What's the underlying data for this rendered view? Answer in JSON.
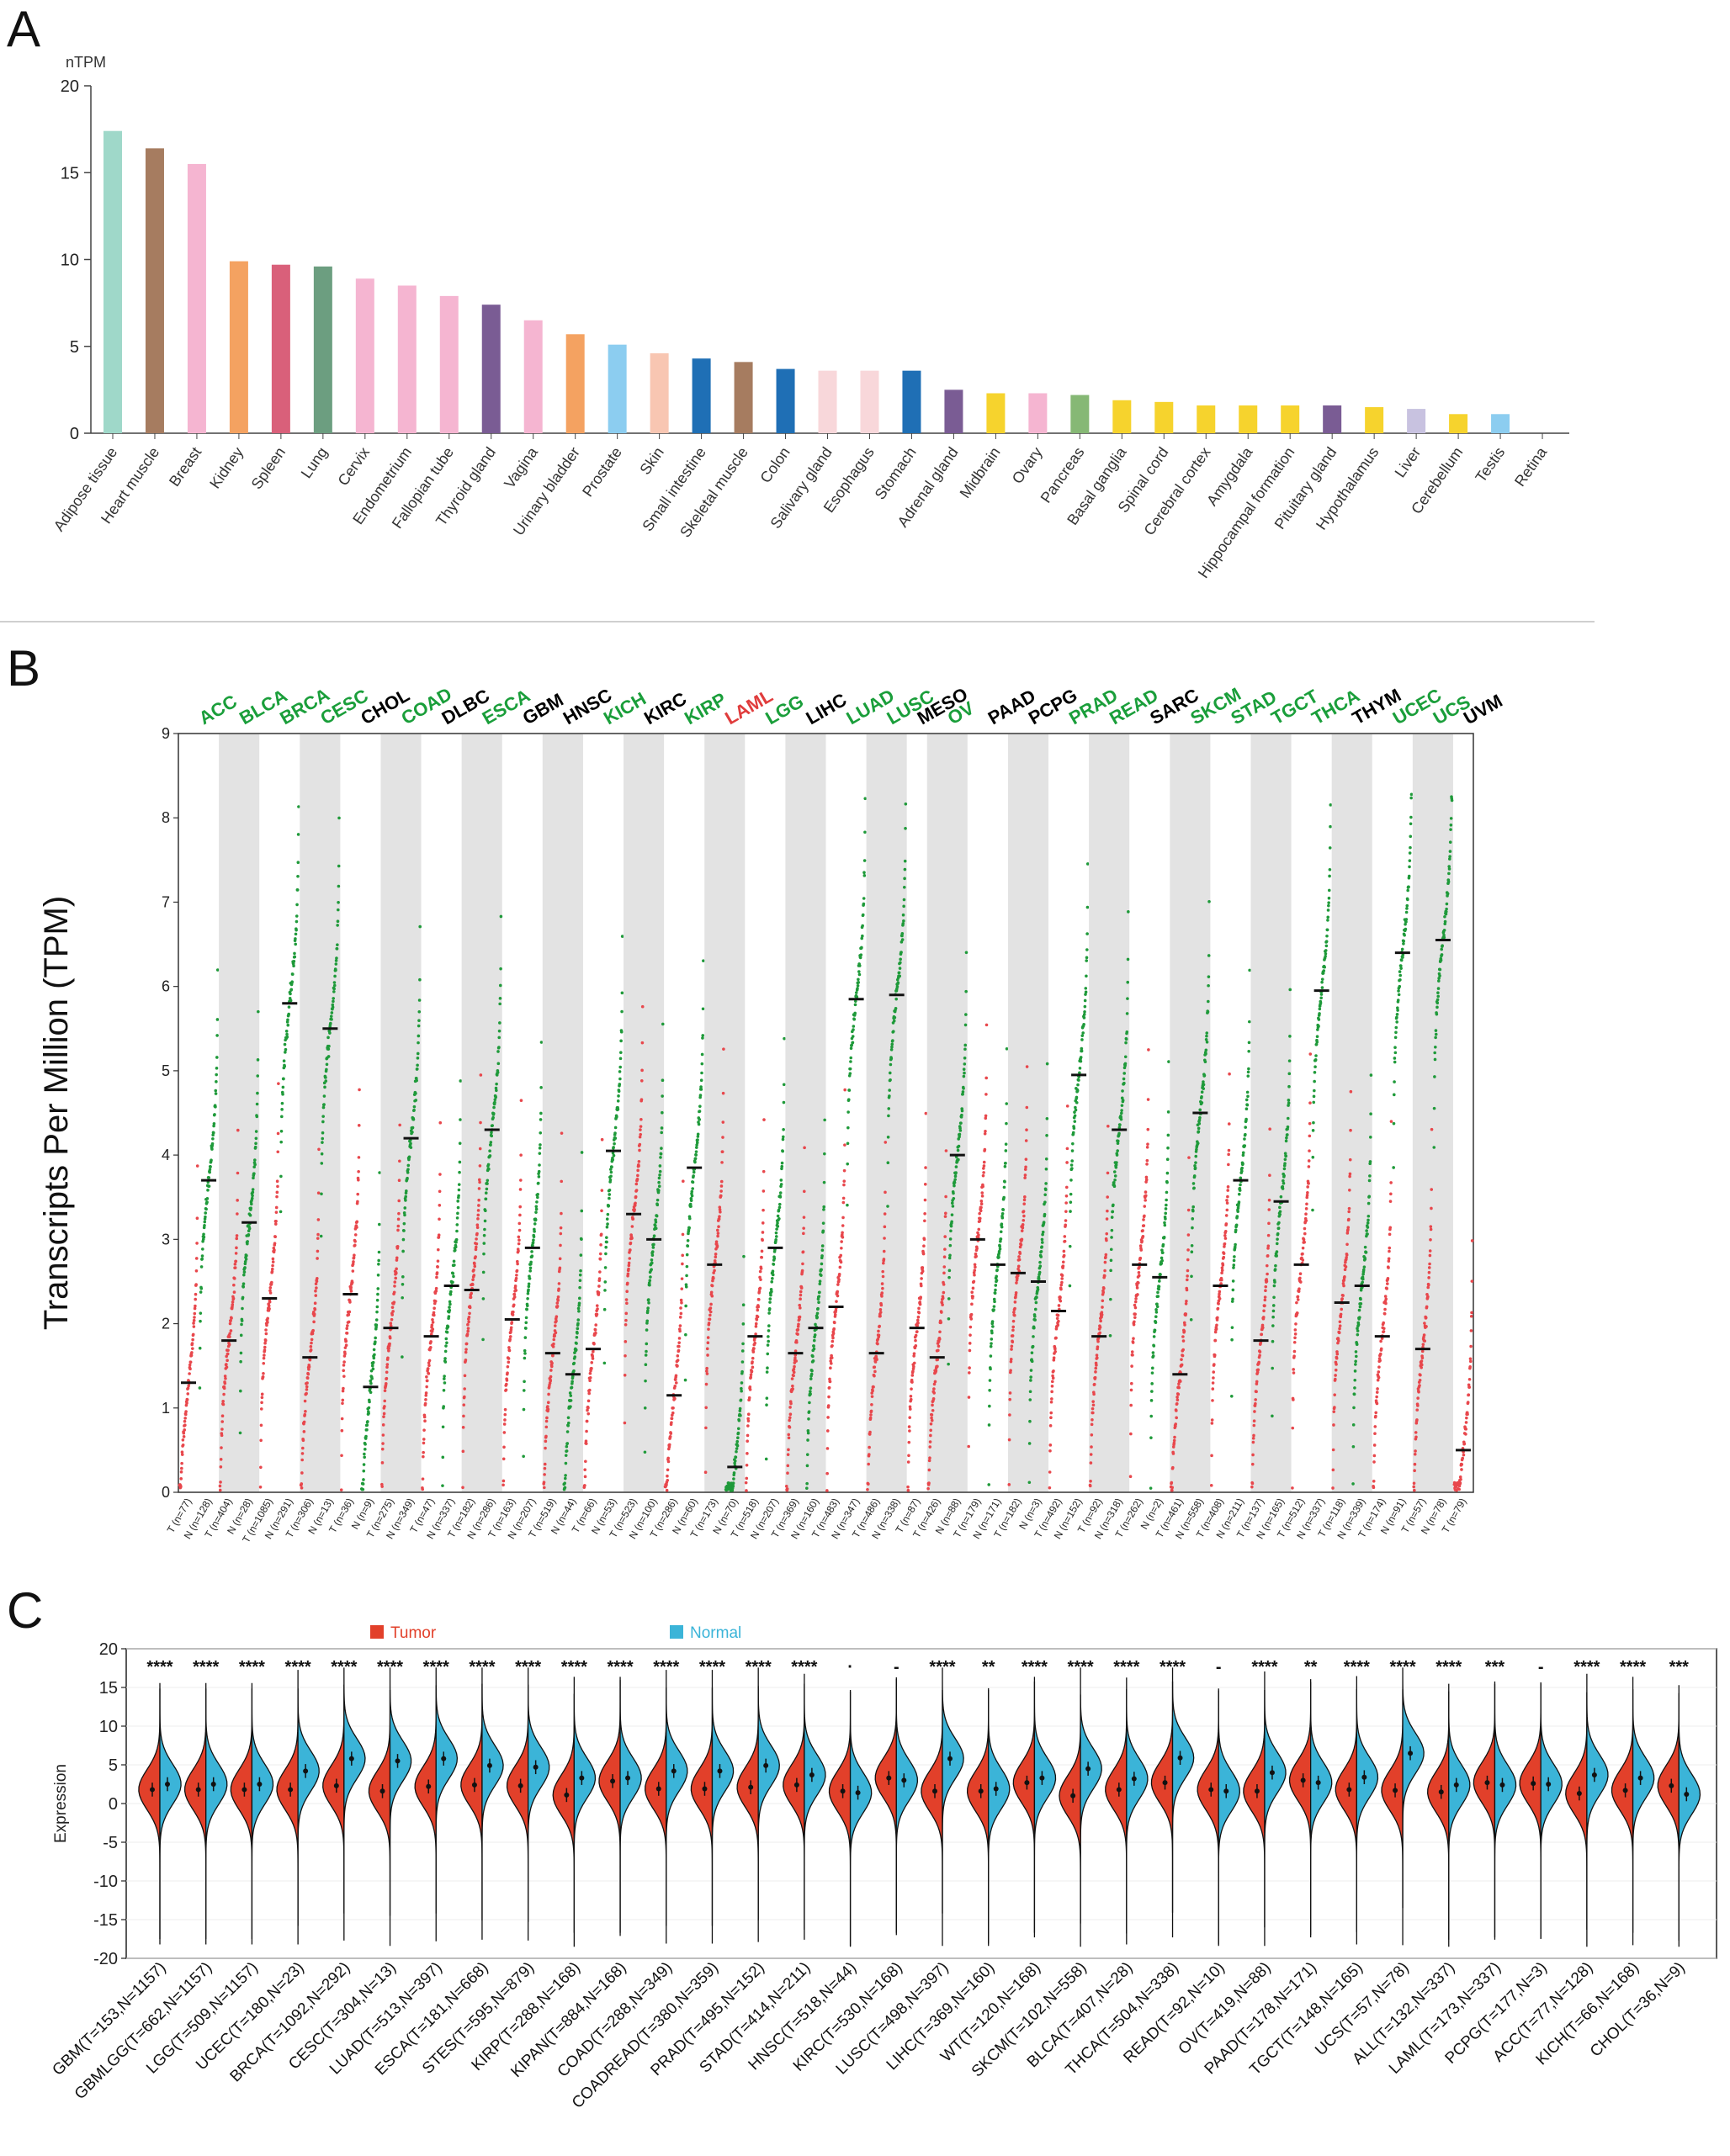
{
  "panels": {
    "a": {
      "label": "A"
    },
    "b": {
      "label": "B"
    },
    "c": {
      "label": "C"
    }
  },
  "chart_data": [
    {
      "panel": "A",
      "type": "bar",
      "ylabel": "nTPM",
      "ylim": [
        0,
        20
      ],
      "yticks": [
        0,
        5,
        10,
        15,
        20
      ],
      "grid": false,
      "categories": [
        "Adipose tissue",
        "Heart muscle",
        "Breast",
        "Kidney",
        "Spleen",
        "Lung",
        "Cervix",
        "Endometrium",
        "Fallopian tube",
        "Thyroid gland",
        "Vagina",
        "Urinary bladder",
        "Prostate",
        "Skin",
        "Small intestine",
        "Skeletal muscle",
        "Colon",
        "Salivary gland",
        "Esophagus",
        "Stomach",
        "Adrenal gland",
        "Midbrain",
        "Ovary",
        "Pancreas",
        "Basal ganglia",
        "Spinal cord",
        "Cerebral cortex",
        "Amygdala",
        "Hippocampal formation",
        "Pituitary gland",
        "Hypothalamus",
        "Liver",
        "Cerebellum",
        "Testis",
        "Retina"
      ],
      "values": [
        17.4,
        16.4,
        15.5,
        9.9,
        9.7,
        9.6,
        8.9,
        8.5,
        7.9,
        7.4,
        6.5,
        5.7,
        5.1,
        4.6,
        4.3,
        4.1,
        3.7,
        3.6,
        3.6,
        3.6,
        2.5,
        2.3,
        2.3,
        2.2,
        1.9,
        1.8,
        1.6,
        1.6,
        1.6,
        1.6,
        1.5,
        1.4,
        1.1,
        1.1,
        0
      ],
      "colors": [
        "#9fd8c9",
        "#a67c60",
        "#f5b5d1",
        "#f4a261",
        "#d9607a",
        "#6c9e80",
        "#f5b5d1",
        "#f5b5d1",
        "#f5b5d1",
        "#7a5c94",
        "#f5b5d1",
        "#f4a261",
        "#8ccdf0",
        "#f8c6b2",
        "#1f6fb5",
        "#a67c60",
        "#1f6fb5",
        "#f8d7da",
        "#f8d7da",
        "#1f6fb5",
        "#7a5c94",
        "#f6d32d",
        "#f5b5d1",
        "#86b875",
        "#f6d32d",
        "#f6d32d",
        "#f6d32d",
        "#f6d32d",
        "#f6d32d",
        "#7a5c94",
        "#f6d32d",
        "#c8c2e0",
        "#f6d32d",
        "#8ccdf0",
        "#ffffff"
      ]
    },
    {
      "panel": "B",
      "type": "scatter",
      "ylabel": "Transcripts Per Million (TPM)",
      "ylim": [
        0,
        9
      ],
      "yticks": [
        0,
        1,
        2,
        3,
        4,
        5,
        6,
        7,
        8,
        9
      ],
      "cancers": [
        {
          "name": "ACC",
          "color": "#1a9e3a",
          "labels": [
            "T (n=77)",
            "N (n=128)"
          ],
          "medians": [
            1.3,
            3.7
          ]
        },
        {
          "name": "BLCA",
          "color": "#1a9e3a",
          "labels": [
            "T (n=404)",
            "N (n=28)"
          ],
          "medians": [
            1.8,
            3.2
          ]
        },
        {
          "name": "BRCA",
          "color": "#1a9e3a",
          "labels": [
            "T (n=1085)",
            "N (n=291)"
          ],
          "medians": [
            2.3,
            5.8
          ]
        },
        {
          "name": "CESC",
          "color": "#1a9e3a",
          "labels": [
            "T (n=306)",
            "N (n=13)"
          ],
          "medians": [
            1.6,
            5.5
          ]
        },
        {
          "name": "CHOL",
          "color": "#000000",
          "labels": [
            "T (n=36)",
            "N (n=9)"
          ],
          "medians": [
            2.35,
            1.25
          ]
        },
        {
          "name": "COAD",
          "color": "#1a9e3a",
          "labels": [
            "T (n=275)",
            "N (n=349)"
          ],
          "medians": [
            1.95,
            4.2
          ]
        },
        {
          "name": "DLBC",
          "color": "#000000",
          "labels": [
            "T (n=47)",
            "N (n=337)"
          ],
          "medians": [
            1.85,
            2.45
          ]
        },
        {
          "name": "ESCA",
          "color": "#1a9e3a",
          "labels": [
            "T (n=182)",
            "N (n=286)"
          ],
          "medians": [
            2.4,
            4.3
          ]
        },
        {
          "name": "GBM",
          "color": "#000000",
          "labels": [
            "T (n=163)",
            "N (n=207)"
          ],
          "medians": [
            2.05,
            2.9
          ]
        },
        {
          "name": "HNSC",
          "color": "#000000",
          "labels": [
            "T (n=519)",
            "N (n=44)"
          ],
          "medians": [
            1.65,
            1.4
          ]
        },
        {
          "name": "KICH",
          "color": "#1a9e3a",
          "labels": [
            "T (n=66)",
            "N (n=53)"
          ],
          "medians": [
            1.7,
            4.05
          ]
        },
        {
          "name": "KIRC",
          "color": "#000000",
          "labels": [
            "T (n=523)",
            "N (n=100)"
          ],
          "medians": [
            3.3,
            3.0
          ]
        },
        {
          "name": "KIRP",
          "color": "#1a9e3a",
          "labels": [
            "T (n=286)",
            "N (n=60)"
          ],
          "medians": [
            1.15,
            3.85
          ]
        },
        {
          "name": "LAML",
          "color": "#e03c3c",
          "labels": [
            "T (n=173)",
            "N (n=70)"
          ],
          "medians": [
            2.7,
            0.3
          ]
        },
        {
          "name": "LGG",
          "color": "#1a9e3a",
          "labels": [
            "T (n=518)",
            "N (n=207)"
          ],
          "medians": [
            1.85,
            2.9
          ]
        },
        {
          "name": "LIHC",
          "color": "#000000",
          "labels": [
            "T (n=369)",
            "N (n=160)"
          ],
          "medians": [
            1.65,
            1.95
          ]
        },
        {
          "name": "LUAD",
          "color": "#1a9e3a",
          "labels": [
            "T (n=483)",
            "N (n=347)"
          ],
          "medians": [
            2.2,
            5.85
          ]
        },
        {
          "name": "LUSC",
          "color": "#1a9e3a",
          "labels": [
            "T (n=486)",
            "N (n=338)"
          ],
          "medians": [
            1.65,
            5.9
          ]
        },
        {
          "name": "MESO",
          "color": "#000000",
          "labels": [
            "T (n=87)"
          ],
          "medians": [
            1.95
          ]
        },
        {
          "name": "OV",
          "color": "#1a9e3a",
          "labels": [
            "T (n=426)",
            "N (n=88)"
          ],
          "medians": [
            1.6,
            4.0
          ]
        },
        {
          "name": "PAAD",
          "color": "#000000",
          "labels": [
            "T (n=179)",
            "N (n=171)"
          ],
          "medians": [
            3.0,
            2.7
          ]
        },
        {
          "name": "PCPG",
          "color": "#000000",
          "labels": [
            "T (n=182)",
            "N (n=3)"
          ],
          "medians": [
            2.6,
            2.5
          ]
        },
        {
          "name": "PRAD",
          "color": "#1a9e3a",
          "labels": [
            "T (n=492)",
            "N (n=152)"
          ],
          "medians": [
            2.15,
            4.95
          ]
        },
        {
          "name": "READ",
          "color": "#1a9e3a",
          "labels": [
            "T (n=92)",
            "N (n=318)"
          ],
          "medians": [
            1.85,
            4.3
          ]
        },
        {
          "name": "SARC",
          "color": "#000000",
          "labels": [
            "T (n=262)",
            "N (n=2)"
          ],
          "medians": [
            2.7,
            2.55
          ]
        },
        {
          "name": "SKCM",
          "color": "#1a9e3a",
          "labels": [
            "T (n=461)",
            "N (n=558)"
          ],
          "medians": [
            1.4,
            4.5
          ]
        },
        {
          "name": "STAD",
          "color": "#1a9e3a",
          "labels": [
            "T (n=408)",
            "N (n=211)"
          ],
          "medians": [
            2.45,
            3.7
          ]
        },
        {
          "name": "TGCT",
          "color": "#1a9e3a",
          "labels": [
            "T (n=137)",
            "N (n=165)"
          ],
          "medians": [
            1.8,
            3.45
          ]
        },
        {
          "name": "THCA",
          "color": "#1a9e3a",
          "labels": [
            "T (n=512)",
            "N (n=337)"
          ],
          "medians": [
            2.7,
            5.95
          ]
        },
        {
          "name": "THYM",
          "color": "#000000",
          "labels": [
            "T (n=118)",
            "N (n=339)"
          ],
          "medians": [
            2.25,
            2.45
          ]
        },
        {
          "name": "UCEC",
          "color": "#1a9e3a",
          "labels": [
            "T (n=174)",
            "N (n=91)"
          ],
          "medians": [
            1.85,
            6.4
          ]
        },
        {
          "name": "UCS",
          "color": "#1a9e3a",
          "labels": [
            "T (n=57)",
            "N (n=78)"
          ],
          "medians": [
            1.7,
            6.55
          ]
        },
        {
          "name": "UVM",
          "color": "#000000",
          "labels": [
            "T (n=79)"
          ],
          "medians": [
            0.5
          ]
        }
      ],
      "point_colors": {
        "tumor": "#e8474c",
        "normal": "#1f9a3a"
      }
    },
    {
      "panel": "C",
      "type": "violin",
      "ylabel": "Expression",
      "ylim": [
        -20,
        20
      ],
      "yticks": [
        -20,
        -15,
        -10,
        -5,
        0,
        5,
        10,
        15,
        20
      ],
      "legend": [
        "Tumor",
        "Normal"
      ],
      "legend_position": "top",
      "series_colors": {
        "tumor": "#e2402a",
        "normal": "#3bb4d8"
      },
      "groups": [
        {
          "label": "GBM(T=153,N=1157)",
          "sig": "****",
          "t_median": 1.8,
          "n_median": 2.5
        },
        {
          "label": "GBMLGG(T=662,N=1157)",
          "sig": "****",
          "t_median": 1.8,
          "n_median": 2.5
        },
        {
          "label": "LGG(T=509,N=1157)",
          "sig": "****",
          "t_median": 1.8,
          "n_median": 2.5
        },
        {
          "label": "UCEC(T=180,N=23)",
          "sig": "****",
          "t_median": 1.8,
          "n_median": 4.2
        },
        {
          "label": "BRCA(T=1092,N=292)",
          "sig": "****",
          "t_median": 2.3,
          "n_median": 5.8
        },
        {
          "label": "CESC(T=304,N=13)",
          "sig": "****",
          "t_median": 1.6,
          "n_median": 5.5
        },
        {
          "label": "LUAD(T=513,N=397)",
          "sig": "****",
          "t_median": 2.2,
          "n_median": 5.8
        },
        {
          "label": "ESCA(T=181,N=668)",
          "sig": "****",
          "t_median": 2.4,
          "n_median": 4.9
        },
        {
          "label": "STES(T=595,N=879)",
          "sig": "****",
          "t_median": 2.3,
          "n_median": 4.7
        },
        {
          "label": "KIRP(T=288,N=168)",
          "sig": "****",
          "t_median": 1.1,
          "n_median": 3.3
        },
        {
          "label": "KIPAN(T=884,N=168)",
          "sig": "****",
          "t_median": 2.9,
          "n_median": 3.3
        },
        {
          "label": "COAD(T=288,N=349)",
          "sig": "****",
          "t_median": 1.9,
          "n_median": 4.2
        },
        {
          "label": "COADREAD(T=380,N=359)",
          "sig": "****",
          "t_median": 1.9,
          "n_median": 4.2
        },
        {
          "label": "PRAD(T=495,N=152)",
          "sig": "****",
          "t_median": 2.1,
          "n_median": 4.9
        },
        {
          "label": "STAD(T=414,N=211)",
          "sig": "****",
          "t_median": 2.4,
          "n_median": 3.7
        },
        {
          "label": "HNSC(T=518,N=44)",
          "sig": "·",
          "t_median": 1.6,
          "n_median": 1.4
        },
        {
          "label": "KIRC(T=530,N=168)",
          "sig": "-",
          "t_median": 3.3,
          "n_median": 3.0
        },
        {
          "label": "LUSC(T=498,N=397)",
          "sig": "****",
          "t_median": 1.6,
          "n_median": 5.8
        },
        {
          "label": "LIHC(T=369,N=160)",
          "sig": "**",
          "t_median": 1.6,
          "n_median": 1.9
        },
        {
          "label": "WT(T=120,N=168)",
          "sig": "****",
          "t_median": 2.7,
          "n_median": 3.3
        },
        {
          "label": "SKCM(T=102,N=558)",
          "sig": "****",
          "t_median": 1.0,
          "n_median": 4.5
        },
        {
          "label": "BLCA(T=407,N=28)",
          "sig": "****",
          "t_median": 1.8,
          "n_median": 3.2
        },
        {
          "label": "THCA(T=504,N=338)",
          "sig": "****",
          "t_median": 2.7,
          "n_median": 5.9
        },
        {
          "label": "READ(T=92,N=10)",
          "sig": "-",
          "t_median": 1.8,
          "n_median": 1.6
        },
        {
          "label": "OV(T=419,N=88)",
          "sig": "****",
          "t_median": 1.6,
          "n_median": 4.0
        },
        {
          "label": "PAAD(T=178,N=171)",
          "sig": "**",
          "t_median": 3.0,
          "n_median": 2.7
        },
        {
          "label": "TGCT(T=148,N=165)",
          "sig": "****",
          "t_median": 1.8,
          "n_median": 3.4
        },
        {
          "label": "UCS(T=57,N=78)",
          "sig": "****",
          "t_median": 1.7,
          "n_median": 6.5
        },
        {
          "label": "ALL(T=132,N=337)",
          "sig": "****",
          "t_median": 1.5,
          "n_median": 2.4
        },
        {
          "label": "LAML(T=173,N=337)",
          "sig": "***",
          "t_median": 2.7,
          "n_median": 2.4
        },
        {
          "label": "PCPG(T=177,N=3)",
          "sig": "-",
          "t_median": 2.6,
          "n_median": 2.5
        },
        {
          "label": "ACC(T=77,N=128)",
          "sig": "****",
          "t_median": 1.3,
          "n_median": 3.7
        },
        {
          "label": "KICH(T=66,N=168)",
          "sig": "****",
          "t_median": 1.7,
          "n_median": 3.3
        },
        {
          "label": "CHOL(T=36,N=9)",
          "sig": "***",
          "t_median": 2.3,
          "n_median": 1.2
        }
      ]
    }
  ]
}
